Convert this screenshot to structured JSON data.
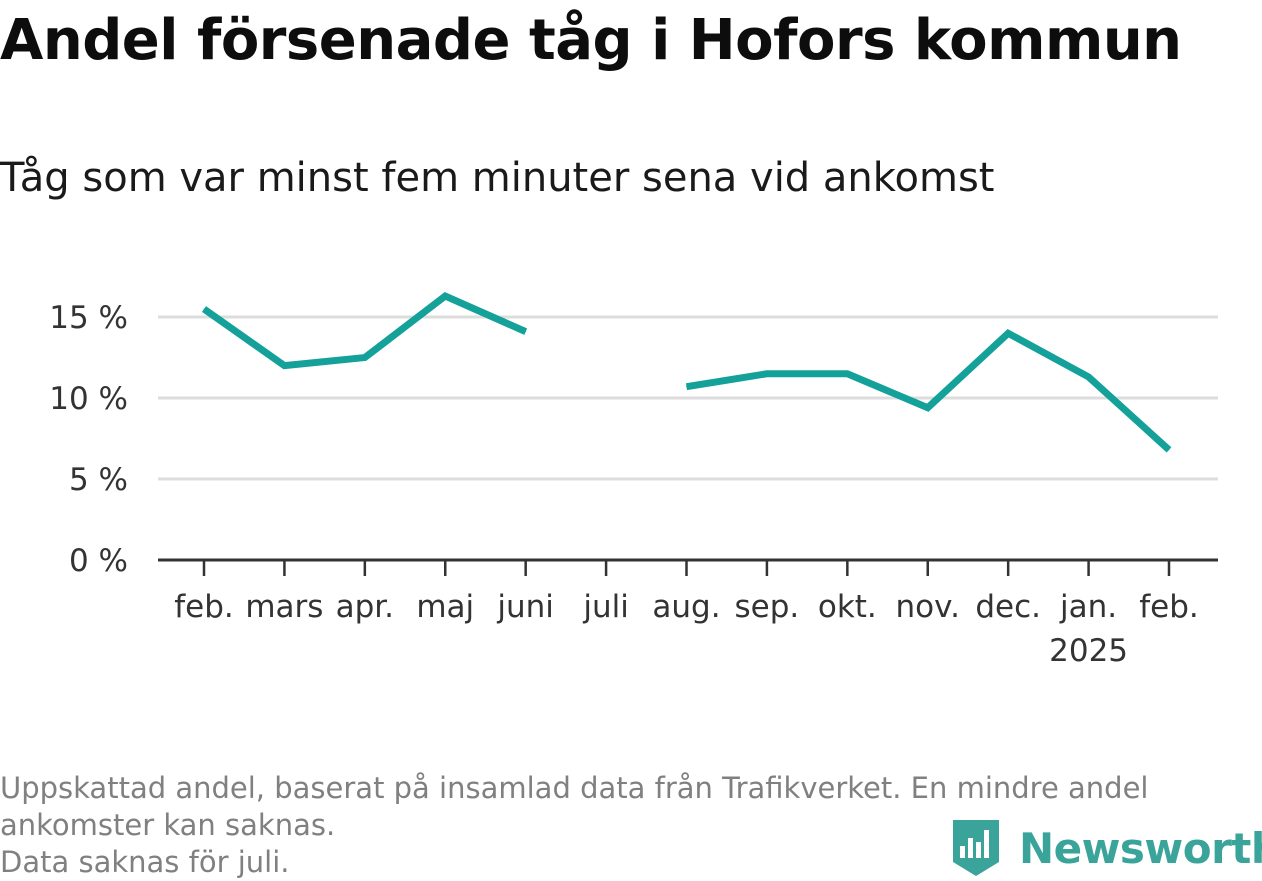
{
  "header": {
    "title": "Andel försenade tåg i Hofors kommun",
    "subtitle": "Tåg som var minst fem minuter sena vid ankomst"
  },
  "chart_data": {
    "type": "line",
    "categories": [
      "feb.",
      "mars",
      "apr.",
      "maj",
      "juni",
      "juli",
      "aug.",
      "sep.",
      "okt.",
      "nov.",
      "dec.",
      "jan.",
      "feb."
    ],
    "category_sublabels": [
      "",
      "",
      "",
      "",
      "",
      "",
      "",
      "",
      "",
      "",
      "",
      "2025",
      ""
    ],
    "series": [
      {
        "values": [
          15.5,
          12.0,
          12.5,
          16.3,
          14.1,
          null,
          10.7,
          11.5,
          11.5,
          9.4,
          14.0,
          11.3,
          6.8
        ]
      }
    ],
    "y_ticks": [
      0,
      5,
      10,
      15
    ],
    "y_tick_labels": [
      "0 %",
      "5 %",
      "10 %",
      "15 %"
    ],
    "ylim": [
      0,
      16.3
    ],
    "grid": true,
    "line_color": "#13a19a"
  },
  "footer": {
    "note_line1": "Uppskattad andel, baserat på insamlad data från Trafikverket. En mindre andel",
    "note_line2": "ankomster kan saknas.",
    "note_line3": "Data saknas för juli.",
    "brand": "Newsworthy",
    "brand_color": "#3aa39a"
  }
}
